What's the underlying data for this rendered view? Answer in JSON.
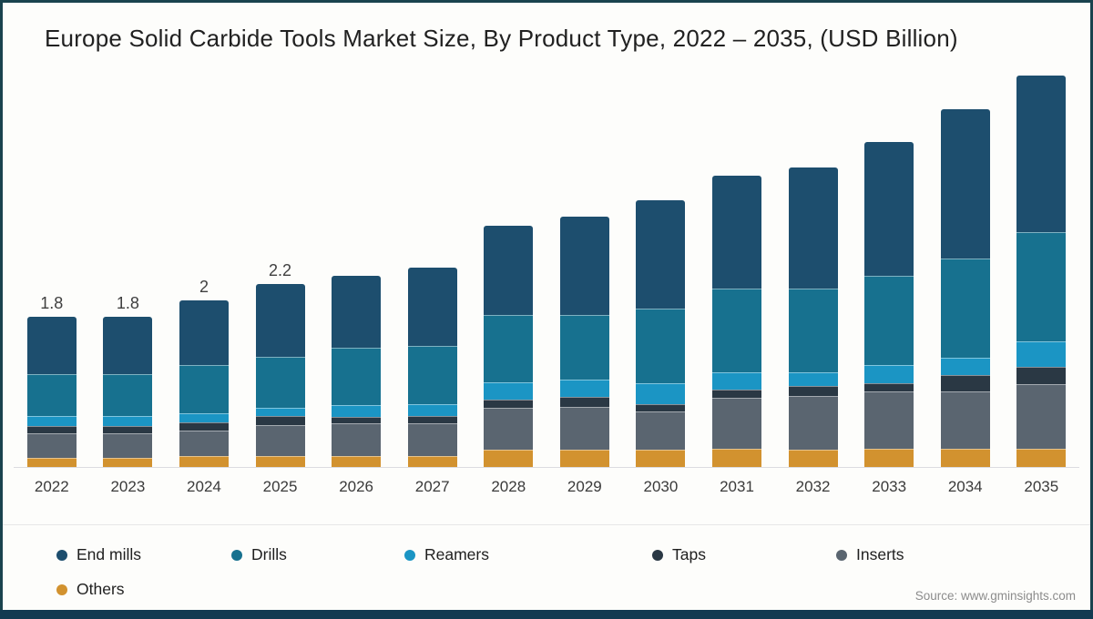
{
  "title": "Europe Solid Carbide Tools Market Size, By Product Type, 2022 – 2035, (USD Billion)",
  "source": "Source: www.gminsights.com",
  "frame": {
    "border_color": "#1a434e",
    "bottom_bar_color": "#123a51",
    "background": "#fdfdfb"
  },
  "chart_data": {
    "type": "bar",
    "stacked": true,
    "title": "Europe Solid Carbide Tools Market Size, By Product Type, 2022 – 2035, (USD Billion)",
    "xlabel": "",
    "ylabel": "USD Billion",
    "ylim": [
      0,
      4.9
    ],
    "grid": false,
    "legend_position": "bottom",
    "categories": [
      "2022",
      "2023",
      "2024",
      "2025",
      "2026",
      "2027",
      "2028",
      "2029",
      "2030",
      "2031",
      "2032",
      "2033",
      "2034",
      "2035"
    ],
    "series": [
      {
        "name": "End mills",
        "color": "#1d4e6e",
        "values": [
          0.68,
          0.68,
          0.78,
          0.88,
          0.87,
          0.95,
          1.08,
          1.17,
          1.3,
          1.36,
          1.46,
          1.6,
          1.8,
          1.88
        ]
      },
      {
        "name": "Drills",
        "color": "#17718f",
        "values": [
          0.51,
          0.51,
          0.58,
          0.61,
          0.69,
          0.69,
          0.8,
          0.78,
          0.89,
          1.0,
          1.0,
          1.08,
          1.19,
          1.31
        ]
      },
      {
        "name": "Reamers",
        "color": "#1b95c4",
        "values": [
          0.12,
          0.12,
          0.1,
          0.1,
          0.14,
          0.15,
          0.21,
          0.21,
          0.25,
          0.21,
          0.17,
          0.21,
          0.2,
          0.31
        ]
      },
      {
        "name": "Taps",
        "color": "#2a3844",
        "values": [
          0.09,
          0.09,
          0.1,
          0.11,
          0.08,
          0.09,
          0.1,
          0.12,
          0.09,
          0.1,
          0.12,
          0.1,
          0.2,
          0.2
        ]
      },
      {
        "name": "Inserts",
        "color": "#5a6570",
        "values": [
          0.29,
          0.29,
          0.31,
          0.37,
          0.39,
          0.39,
          0.5,
          0.51,
          0.46,
          0.61,
          0.64,
          0.69,
          0.69,
          0.78
        ]
      },
      {
        "name": "Others",
        "color": "#d2922f",
        "values": [
          0.11,
          0.11,
          0.13,
          0.13,
          0.13,
          0.13,
          0.21,
          0.21,
          0.21,
          0.22,
          0.21,
          0.22,
          0.22,
          0.22
        ]
      }
    ],
    "totals": [
      1.8,
      1.8,
      2.0,
      2.2,
      2.3,
      2.4,
      2.9,
      3.0,
      3.2,
      3.5,
      3.6,
      3.9,
      4.3,
      4.7
    ],
    "data_labels": [
      "1.8",
      "1.8",
      "2",
      "2.2",
      "",
      "",
      "",
      "",
      "",
      "",
      "",
      "",
      "",
      ""
    ]
  }
}
